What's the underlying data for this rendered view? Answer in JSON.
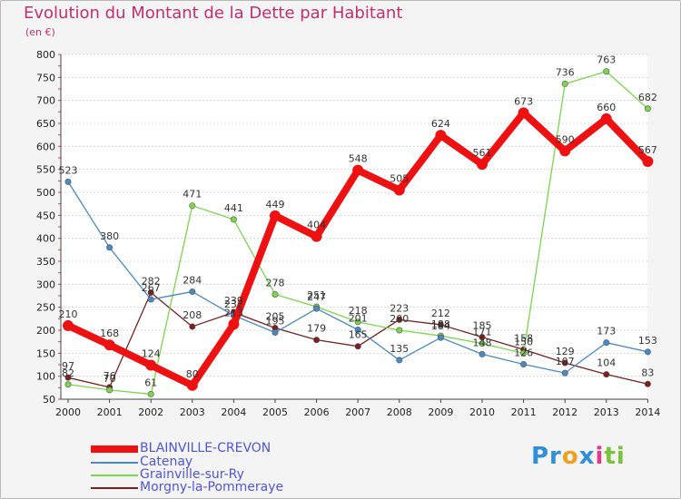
{
  "title": "Evolution du Montant de la Dette par Habitant",
  "unit": "(en €)",
  "logo": "Proxiti",
  "chart_data": {
    "type": "line",
    "x": [
      2000,
      2001,
      2002,
      2003,
      2004,
      2005,
      2006,
      2007,
      2008,
      2009,
      2010,
      2011,
      2012,
      2013,
      2014
    ],
    "ylim": [
      50,
      800
    ],
    "yticks": [
      50,
      100,
      150,
      200,
      250,
      300,
      350,
      400,
      450,
      500,
      550,
      600,
      650,
      700,
      750,
      800
    ],
    "grid": "horizontal",
    "series": [
      {
        "name": "BLAINVILLE-CREVON",
        "color": "#ee1111",
        "values": [
          210,
          168,
          124,
          80,
          213,
          449,
          404,
          548,
          505,
          624,
          561,
          673,
          590,
          660,
          567
        ]
      },
      {
        "name": "Catenay",
        "color": "#4a8ac4",
        "values": [
          523,
          380,
          267,
          284,
          232,
          195,
          247,
          201,
          135,
          184,
          148,
          126,
          107,
          173,
          153
        ]
      },
      {
        "name": "Grainville-sur-Ry",
        "color": "#7ad64a",
        "values": [
          82,
          70,
          61,
          471,
          441,
          278,
          251,
          218,
          200,
          188,
          171,
          150,
          736,
          763,
          682
        ]
      },
      {
        "name": "Morgny-la-Pommeraye",
        "color": "#7a2020",
        "values": [
          97,
          76,
          282,
          208,
          239,
          205,
          179,
          165,
          223,
          212,
          185,
          158,
          129,
          104,
          83
        ]
      }
    ]
  }
}
